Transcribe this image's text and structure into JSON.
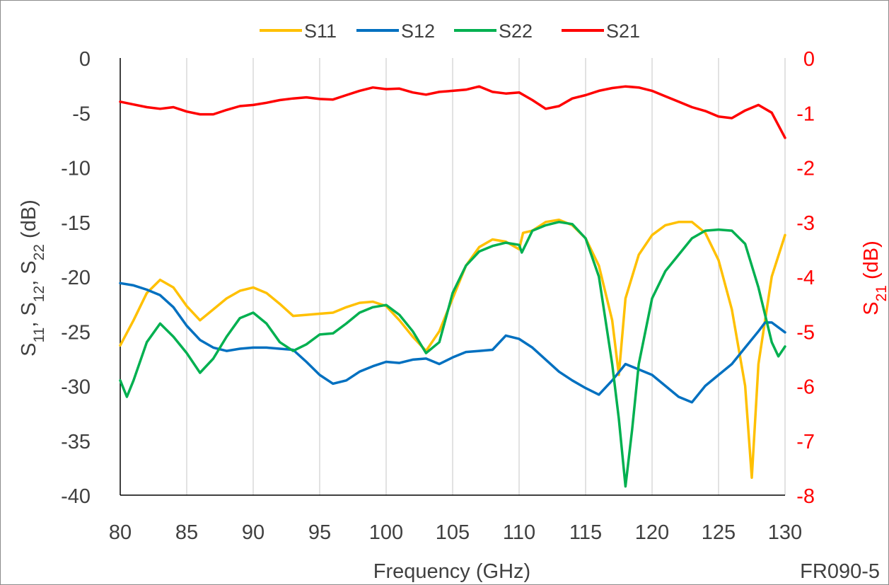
{
  "chart_data": {
    "type": "line",
    "title": "",
    "xlabel": "Frequency (GHz)",
    "ylabel_left": "S11, S12, S22 (dB)",
    "ylabel_right": "S21 (dB)",
    "annotation": "FR090-5",
    "xlim": [
      80,
      130
    ],
    "ylim_left": [
      -40,
      0
    ],
    "ylim_right": [
      -8,
      0
    ],
    "x_ticks": [
      80,
      85,
      90,
      95,
      100,
      105,
      110,
      115,
      120,
      125,
      130
    ],
    "y_ticks_left": [
      0,
      -5,
      -10,
      -15,
      -20,
      -25,
      -30,
      -35,
      -40
    ],
    "y_ticks_right": [
      0,
      -1,
      -2,
      -3,
      -4,
      -5,
      -6,
      -7,
      -8
    ],
    "grid": "vertical",
    "legend": "top",
    "series": [
      {
        "name": "S11",
        "axis": "left",
        "color": "#FFC000",
        "x": [
          80,
          81,
          82,
          83,
          84,
          85,
          86,
          87,
          88,
          89,
          90,
          91,
          92,
          93,
          94,
          95,
          96,
          97,
          98,
          99,
          100,
          101,
          102,
          103,
          104,
          105,
          106,
          107,
          108,
          109,
          110,
          110.3,
          111,
          112,
          113,
          114,
          115,
          116,
          117,
          117.5,
          118,
          119,
          120,
          121,
          122,
          123,
          124,
          125,
          126,
          127,
          127.5,
          128,
          129,
          130
        ],
        "y": [
          -26.3,
          -24,
          -21.5,
          -20.3,
          -21,
          -22.7,
          -24,
          -23,
          -22,
          -21.3,
          -21,
          -21.5,
          -22.5,
          -23.6,
          -23.5,
          -23.4,
          -23.3,
          -22.8,
          -22.4,
          -22.3,
          -22.7,
          -24,
          -25.5,
          -26.8,
          -25,
          -22,
          -19,
          -17.3,
          -16.6,
          -16.8,
          -17.5,
          -16,
          -15.8,
          -15,
          -14.8,
          -15.3,
          -16.5,
          -19,
          -24,
          -29,
          -22,
          -18,
          -16.2,
          -15.3,
          -15,
          -15,
          -16,
          -18.5,
          -23,
          -30,
          -38.4,
          -28,
          -20,
          -16.2
        ]
      },
      {
        "name": "S12",
        "axis": "left",
        "color": "#0070C0",
        "x": [
          80,
          81,
          82,
          83,
          84,
          85,
          86,
          87,
          88,
          89,
          90,
          91,
          92,
          93,
          94,
          95,
          96,
          97,
          98,
          99,
          100,
          101,
          102,
          103,
          104,
          105,
          106,
          107,
          108,
          109,
          110,
          111,
          112,
          113,
          114,
          115,
          116,
          117,
          118,
          119,
          120,
          121,
          122,
          123,
          124,
          125,
          126,
          127,
          128,
          128.5,
          129,
          130
        ],
        "y": [
          -20.6,
          -20.8,
          -21.2,
          -21.7,
          -22.8,
          -24.5,
          -25.8,
          -26.5,
          -26.8,
          -26.6,
          -26.5,
          -26.5,
          -26.6,
          -26.7,
          -27.8,
          -29,
          -29.8,
          -29.5,
          -28.7,
          -28.2,
          -27.8,
          -27.9,
          -27.6,
          -27.5,
          -28,
          -27.4,
          -26.9,
          -26.8,
          -26.7,
          -25.4,
          -25.7,
          -26.5,
          -27.6,
          -28.7,
          -29.5,
          -30.2,
          -30.8,
          -29.5,
          -28,
          -28.5,
          -29,
          -30,
          -31,
          -31.5,
          -30,
          -29,
          -28,
          -26.5,
          -25,
          -24.2,
          -24.2,
          -25.1
        ]
      },
      {
        "name": "S22",
        "axis": "left",
        "color": "#00B050",
        "x": [
          80,
          80.5,
          81,
          82,
          83,
          84,
          85,
          86,
          87,
          88,
          89,
          90,
          91,
          92,
          93,
          94,
          95,
          96,
          97,
          98,
          99,
          100,
          101,
          102,
          103,
          104,
          105,
          106,
          107,
          108,
          109,
          110,
          110.2,
          111,
          112,
          113,
          114,
          115,
          116,
          117,
          117.5,
          118,
          118.5,
          119,
          120,
          121,
          122,
          123,
          124,
          125,
          126,
          127,
          128,
          129,
          129.5,
          130
        ],
        "y": [
          -29.5,
          -31,
          -29.5,
          -26,
          -24.3,
          -25.5,
          -27,
          -28.8,
          -27.5,
          -25.5,
          -23.8,
          -23.3,
          -24.3,
          -26,
          -26.8,
          -26.2,
          -25.3,
          -25.2,
          -24.3,
          -23.3,
          -22.8,
          -22.6,
          -23.5,
          -25,
          -27,
          -26,
          -21.5,
          -19,
          -17.7,
          -17.2,
          -16.9,
          -17.1,
          -17.8,
          -15.8,
          -15.3,
          -15,
          -15.2,
          -16.5,
          -20,
          -28,
          -33,
          -39.2,
          -34,
          -28,
          -22,
          -19.5,
          -18,
          -16.5,
          -15.8,
          -15.7,
          -15.8,
          -17,
          -21,
          -26,
          -27.3,
          -26.4
        ]
      },
      {
        "name": "S21",
        "axis": "right",
        "color": "#FF0000",
        "x": [
          80,
          81,
          82,
          83,
          84,
          85,
          86,
          87,
          88,
          89,
          90,
          91,
          92,
          93,
          94,
          95,
          96,
          97,
          98,
          99,
          100,
          101,
          102,
          103,
          104,
          105,
          106,
          107,
          108,
          109,
          110,
          111,
          112,
          113,
          114,
          115,
          116,
          117,
          118,
          119,
          120,
          121,
          122,
          123,
          124,
          125,
          126,
          127,
          128,
          129,
          130
        ],
        "y": [
          -0.8,
          -0.85,
          -0.9,
          -0.93,
          -0.9,
          -0.98,
          -1.03,
          -1.03,
          -0.95,
          -0.88,
          -0.86,
          -0.82,
          -0.77,
          -0.74,
          -0.72,
          -0.75,
          -0.76,
          -0.68,
          -0.6,
          -0.54,
          -0.57,
          -0.56,
          -0.63,
          -0.67,
          -0.62,
          -0.6,
          -0.58,
          -0.52,
          -0.62,
          -0.65,
          -0.63,
          -0.77,
          -0.93,
          -0.88,
          -0.74,
          -0.68,
          -0.6,
          -0.55,
          -0.52,
          -0.54,
          -0.6,
          -0.7,
          -0.8,
          -0.9,
          -0.97,
          -1.07,
          -1.1,
          -0.96,
          -0.86,
          -1.0,
          -1.46
        ]
      }
    ]
  }
}
